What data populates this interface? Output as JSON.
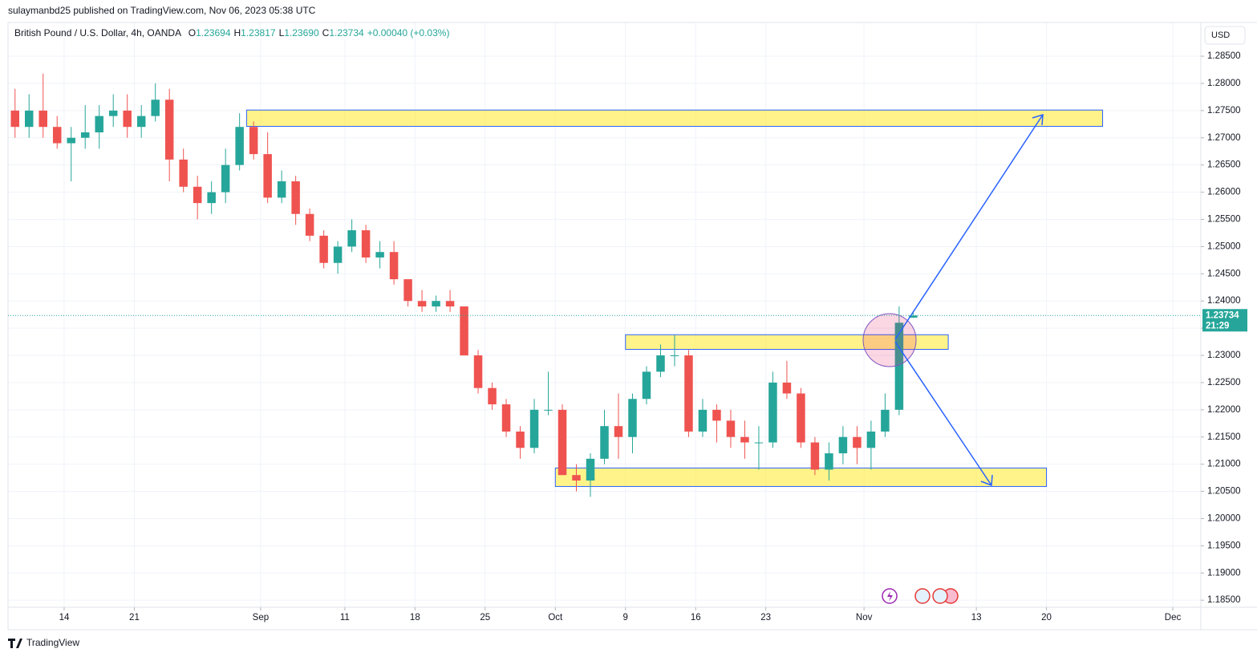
{
  "header": {
    "publisher": "sulaymanbd25 published on TradingView.com, Nov 06, 2023 05:38 UTC",
    "symbol": "British Pound / U.S. Dollar, 4h, OANDA",
    "ohlc": [
      {
        "label": "O",
        "value": "1.23694"
      },
      {
        "label": "H",
        "value": "1.23817"
      },
      {
        "label": "L",
        "value": "1.23690"
      },
      {
        "label": "C",
        "value": "1.23734"
      }
    ],
    "change": "+0.00040 (+0.03%)",
    "currency": "USD",
    "brand": "TradingView"
  },
  "chart_data": {
    "type": "candlestick",
    "up_color": "#26a69a",
    "down_color": "#ef5350",
    "grid": true,
    "x": [
      "2023-08-08",
      "2023-08-09",
      "2023-08-10",
      "2023-08-11",
      "2023-08-14",
      "2023-08-15",
      "2023-08-16",
      "2023-08-17",
      "2023-08-18",
      "2023-08-21",
      "2023-08-22",
      "2023-08-23",
      "2023-08-24",
      "2023-08-25",
      "2023-08-28",
      "2023-08-29",
      "2023-08-30",
      "2023-08-31",
      "2023-09-01",
      "2023-09-04",
      "2023-09-05",
      "2023-09-06",
      "2023-09-07",
      "2023-09-08",
      "2023-09-11",
      "2023-09-12",
      "2023-09-13",
      "2023-09-14",
      "2023-09-15",
      "2023-09-18",
      "2023-09-19",
      "2023-09-20",
      "2023-09-21",
      "2023-09-22",
      "2023-09-25",
      "2023-09-26",
      "2023-09-27",
      "2023-09-28",
      "2023-09-29",
      "2023-10-02",
      "2023-10-03",
      "2023-10-04",
      "2023-10-05",
      "2023-10-06",
      "2023-10-09",
      "2023-10-10",
      "2023-10-11",
      "2023-10-12",
      "2023-10-13",
      "2023-10-16",
      "2023-10-17",
      "2023-10-18",
      "2023-10-19",
      "2023-10-20",
      "2023-10-23",
      "2023-10-24",
      "2023-10-25",
      "2023-10-26",
      "2023-10-27",
      "2023-10-30",
      "2023-10-31",
      "2023-11-01",
      "2023-11-02",
      "2023-11-03",
      "2023-11-06"
    ],
    "open": [
      1.275,
      1.272,
      1.275,
      1.272,
      1.269,
      1.27,
      1.271,
      1.274,
      1.275,
      1.272,
      1.274,
      1.277,
      1.266,
      1.261,
      1.258,
      1.26,
      1.265,
      1.272,
      1.267,
      1.259,
      1.262,
      1.256,
      1.252,
      1.247,
      1.25,
      1.253,
      1.248,
      1.249,
      1.244,
      1.24,
      1.239,
      1.24,
      1.239,
      1.23,
      1.224,
      1.221,
      1.216,
      1.213,
      1.22,
      1.22,
      1.208,
      1.207,
      1.211,
      1.217,
      1.215,
      1.222,
      1.227,
      1.23,
      1.23,
      1.216,
      1.22,
      1.218,
      1.215,
      1.214,
      1.214,
      1.225,
      1.223,
      1.214,
      1.209,
      1.212,
      1.215,
      1.213,
      1.216,
      1.22,
      1.23694
    ],
    "high": [
      1.279,
      1.278,
      1.2818,
      1.274,
      1.272,
      1.276,
      1.276,
      1.278,
      1.278,
      1.276,
      1.28,
      1.279,
      1.268,
      1.263,
      1.262,
      1.268,
      1.2745,
      1.273,
      1.271,
      1.264,
      1.263,
      1.257,
      1.253,
      1.251,
      1.255,
      1.254,
      1.251,
      1.251,
      1.244,
      1.242,
      1.241,
      1.242,
      1.239,
      1.231,
      1.225,
      1.222,
      1.217,
      1.222,
      1.227,
      1.221,
      1.21,
      1.212,
      1.22,
      1.223,
      1.223,
      1.228,
      1.232,
      1.2337,
      1.231,
      1.222,
      1.221,
      1.22,
      1.218,
      1.217,
      1.227,
      1.229,
      1.224,
      1.215,
      1.214,
      1.217,
      1.217,
      1.218,
      1.223,
      1.239,
      1.23817
    ],
    "low": [
      1.27,
      1.27,
      1.27,
      1.268,
      1.262,
      1.268,
      1.268,
      1.272,
      1.27,
      1.27,
      1.273,
      1.262,
      1.26,
      1.255,
      1.256,
      1.258,
      1.264,
      1.266,
      1.258,
      1.258,
      1.254,
      1.251,
      1.246,
      1.245,
      1.249,
      1.247,
      1.246,
      1.243,
      1.239,
      1.238,
      1.238,
      1.238,
      1.23,
      1.223,
      1.22,
      1.215,
      1.211,
      1.212,
      1.219,
      1.208,
      1.205,
      1.204,
      1.21,
      1.211,
      1.212,
      1.221,
      1.226,
      1.228,
      1.215,
      1.215,
      1.214,
      1.213,
      1.211,
      1.209,
      1.213,
      1.222,
      1.213,
      1.208,
      1.207,
      1.21,
      1.21,
      1.209,
      1.215,
      1.219,
      1.2369
    ],
    "close": [
      1.272,
      1.275,
      1.272,
      1.269,
      1.27,
      1.271,
      1.274,
      1.275,
      1.272,
      1.274,
      1.277,
      1.266,
      1.261,
      1.258,
      1.26,
      1.265,
      1.272,
      1.267,
      1.259,
      1.262,
      1.256,
      1.252,
      1.247,
      1.25,
      1.253,
      1.248,
      1.249,
      1.244,
      1.24,
      1.239,
      1.24,
      1.239,
      1.23,
      1.224,
      1.221,
      1.216,
      1.213,
      1.22,
      1.22,
      1.208,
      1.207,
      1.211,
      1.217,
      1.215,
      1.222,
      1.227,
      1.23,
      1.23,
      1.216,
      1.22,
      1.218,
      1.215,
      1.214,
      1.214,
      1.225,
      1.223,
      1.214,
      1.209,
      1.212,
      1.215,
      1.213,
      1.216,
      1.22,
      1.236,
      1.23734
    ],
    "xlim": [
      "2023-08-08",
      "2023-12-05"
    ],
    "xticks": [
      {
        "value": "2023-08-14",
        "label": "14"
      },
      {
        "value": "2023-08-21",
        "label": "21"
      },
      {
        "value": "2023-09-01",
        "label": "Sep"
      },
      {
        "value": "2023-09-11",
        "label": "11"
      },
      {
        "value": "2023-09-18",
        "label": "18"
      },
      {
        "value": "2023-09-25",
        "label": "25"
      },
      {
        "value": "2023-10-02",
        "label": "Oct"
      },
      {
        "value": "2023-10-09",
        "label": "9"
      },
      {
        "value": "2023-10-16",
        "label": "16"
      },
      {
        "value": "2023-10-23",
        "label": "23"
      },
      {
        "value": "2023-11-01",
        "label": "Nov"
      },
      {
        "value": "2023-11-13",
        "label": "13"
      },
      {
        "value": "2023-11-20",
        "label": "20"
      },
      {
        "value": "2023-12-01",
        "label": "Dec"
      }
    ],
    "ylim": [
      1.1837,
      1.2912
    ],
    "yticks": [
      {
        "value": 1.185,
        "label": "1.18500"
      },
      {
        "value": 1.19,
        "label": "1.19000"
      },
      {
        "value": 1.195,
        "label": "1.19500"
      },
      {
        "value": 1.2,
        "label": "1.20000"
      },
      {
        "value": 1.205,
        "label": "1.20500"
      },
      {
        "value": 1.21,
        "label": "1.21000"
      },
      {
        "value": 1.215,
        "label": "1.21500"
      },
      {
        "value": 1.22,
        "label": "1.22000"
      },
      {
        "value": 1.225,
        "label": "1.22500"
      },
      {
        "value": 1.23,
        "label": "1.23000"
      },
      {
        "value": 1.235,
        "label": "1.23500"
      },
      {
        "value": 1.24,
        "label": "1.24000"
      },
      {
        "value": 1.245,
        "label": "1.24500"
      },
      {
        "value": 1.25,
        "label": "1.25000"
      },
      {
        "value": 1.255,
        "label": "1.25500"
      },
      {
        "value": 1.26,
        "label": "1.26000"
      },
      {
        "value": 1.265,
        "label": "1.26500"
      },
      {
        "value": 1.27,
        "label": "1.27000"
      },
      {
        "value": 1.275,
        "label": "1.27500"
      },
      {
        "value": 1.28,
        "label": "1.28000"
      },
      {
        "value": 1.285,
        "label": "1.28500"
      }
    ],
    "last_price": {
      "value": 1.23734,
      "label": "1.23734",
      "countdown": "21:29",
      "color": "#26a69a"
    },
    "zones": [
      {
        "low": 1.2721,
        "high": 1.2751,
        "start": "2023-08-31",
        "end": "2023-11-24"
      },
      {
        "low": 1.2311,
        "high": 1.2338,
        "start": "2023-10-09",
        "end": "2023-11-09"
      },
      {
        "low": 1.2059,
        "high": 1.2093,
        "start": "2023-10-02",
        "end": "2023-11-20"
      }
    ]
  }
}
